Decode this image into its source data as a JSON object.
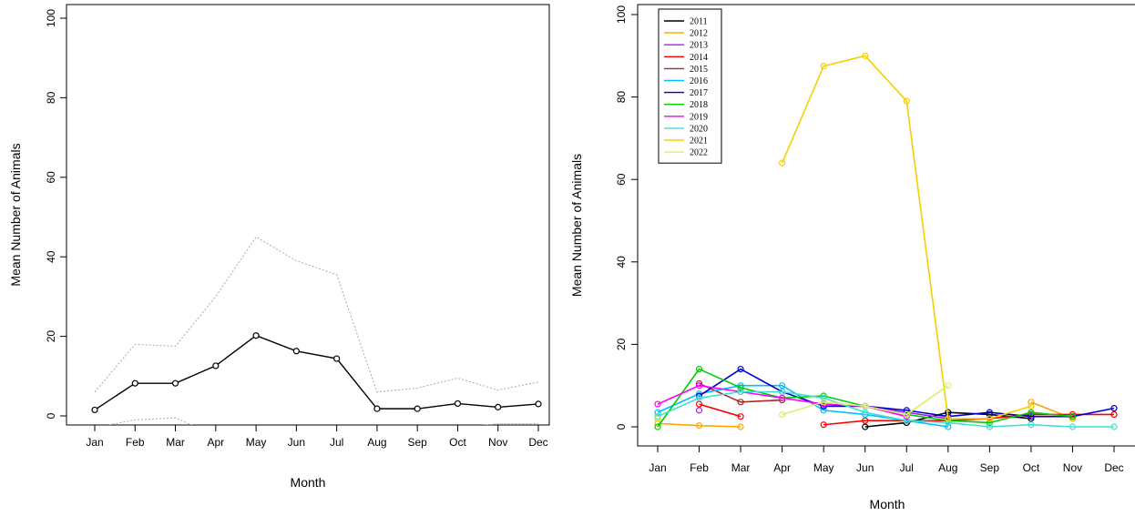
{
  "chart_data": [
    {
      "type": "line",
      "xlabel": "Month",
      "ylabel": "Mean Number of Animals",
      "ylim": [
        0,
        100
      ],
      "yticks": [
        0,
        20,
        40,
        60,
        80,
        100
      ],
      "categories": [
        "Jan",
        "Feb",
        "Mar",
        "Apr",
        "May",
        "Jun",
        "Jul",
        "Aug",
        "Sep",
        "Oct",
        "Nov",
        "Dec"
      ],
      "grid": false,
      "series": [
        {
          "role": "mean",
          "color": "#000000",
          "style": "solid",
          "markers": true,
          "values": [
            1.5,
            8.2,
            8.2,
            12.6,
            20.2,
            16.3,
            14.4,
            1.8,
            1.8,
            3.1,
            2.2,
            3.0
          ]
        },
        {
          "role": "upper",
          "color": "#aaaaaa",
          "style": "dotted",
          "markers": false,
          "values": [
            6,
            18,
            17.5,
            30,
            45,
            39,
            35.5,
            6,
            7,
            9.5,
            6.5,
            8.5
          ]
        },
        {
          "role": "lower",
          "color": "#aaaaaa",
          "style": "dotted",
          "markers": false,
          "values": [
            -3,
            -1,
            -0.5,
            -5,
            null,
            null,
            null,
            -2.5,
            -3,
            -3,
            -2,
            -2
          ]
        }
      ]
    },
    {
      "type": "line",
      "xlabel": "Month",
      "ylabel": "Mean Number of Animals",
      "ylim": [
        0,
        100
      ],
      "yticks": [
        0,
        20,
        40,
        60,
        80,
        100
      ],
      "categories": [
        "Jan",
        "Feb",
        "Mar",
        "Apr",
        "May",
        "Jun",
        "Jul",
        "Aug",
        "Sep",
        "Oct",
        "Nov",
        "Dec"
      ],
      "grid": false,
      "legend_position": "top-left",
      "series": [
        {
          "name": "2011",
          "color": "#000000",
          "values": [
            null,
            null,
            null,
            null,
            null,
            0,
            1,
            3.5,
            3,
            2,
            null,
            null
          ]
        },
        {
          "name": "2012",
          "color": "#ffa500",
          "values": [
            0.8,
            0.3,
            0,
            null,
            null,
            null,
            null,
            null,
            null,
            6,
            2,
            null
          ]
        },
        {
          "name": "2013",
          "color": "#a020f0",
          "values": [
            null,
            4,
            null,
            null,
            5,
            5,
            3.5,
            2,
            null,
            null,
            null,
            null
          ]
        },
        {
          "name": "2014",
          "color": "#ff0000",
          "values": [
            null,
            5.5,
            2.5,
            null,
            0.5,
            1.5,
            1.5,
            1.5,
            2,
            3,
            3,
            3
          ]
        },
        {
          "name": "2015",
          "color": "#a52a2a",
          "values": [
            null,
            10.5,
            6,
            6.5,
            null,
            null,
            null,
            null,
            null,
            null,
            null,
            null
          ]
        },
        {
          "name": "2016",
          "color": "#00bfff",
          "values": [
            3.5,
            8,
            10,
            10,
            4,
            3,
            1.5,
            0,
            null,
            null,
            null,
            null
          ]
        },
        {
          "name": "2017",
          "color": "#0000cd",
          "values": [
            null,
            7.5,
            14,
            8.5,
            5,
            5,
            4,
            2.5,
            3.5,
            2.5,
            2.5,
            4.5
          ]
        },
        {
          "name": "2018",
          "color": "#00cd00",
          "values": [
            0,
            14,
            9.5,
            7,
            7.5,
            5,
            3,
            1.5,
            1,
            3.5,
            2.5,
            null
          ]
        },
        {
          "name": "2019",
          "color": "#ff00ff",
          "values": [
            5.5,
            10,
            8.5,
            7,
            5.5,
            5,
            2.5,
            null,
            null,
            null,
            null,
            null
          ]
        },
        {
          "name": "2020",
          "color": "#40e0d0",
          "values": [
            2.5,
            7,
            8.5,
            8.5,
            7,
            3.5,
            1.5,
            1,
            0,
            0.5,
            0,
            0
          ]
        },
        {
          "name": "2021",
          "color": "#f5d000",
          "values": [
            2,
            null,
            null,
            64,
            87.5,
            90,
            79,
            2,
            2,
            5,
            null,
            null
          ]
        },
        {
          "name": "2022",
          "color": "#d8f070",
          "values": [
            null,
            null,
            null,
            3,
            6,
            5,
            3,
            10,
            null,
            null,
            null,
            null
          ]
        }
      ]
    }
  ]
}
